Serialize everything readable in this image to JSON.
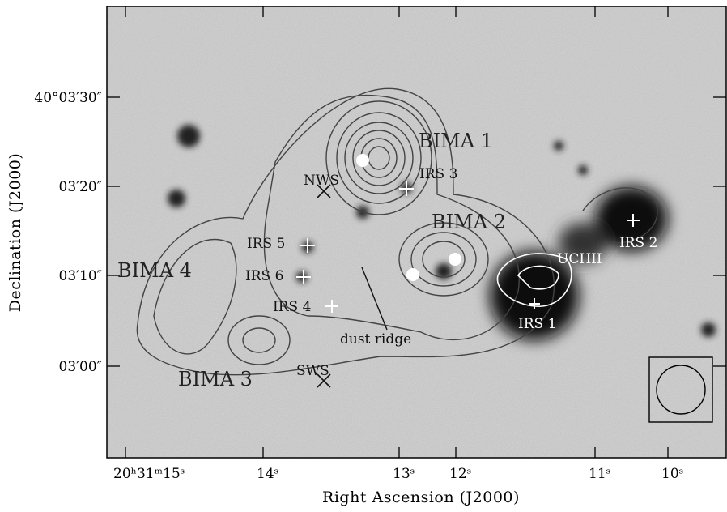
{
  "axes": {
    "x": {
      "label": "Right Ascension (J2000)",
      "ticks": [
        "20ʰ31ᵐ15ˢ",
        "14ˢ",
        "13ˢ",
        "12ˢ",
        "11ˢ",
        "10ˢ"
      ]
    },
    "y": {
      "label": "Declination (J2000)",
      "ticks": [
        "40°03′30″",
        "03′20″",
        "03′10″",
        "03′00″"
      ]
    }
  },
  "annotations": [
    "BIMA 1",
    "BIMA 2",
    "BIMA 3",
    "BIMA 4",
    "IRS 1",
    "IRS 2",
    "IRS 3",
    "IRS 4",
    "IRS 5",
    "IRS 6",
    "NWS",
    "SWS",
    "UCHII",
    "dust ridge"
  ]
}
